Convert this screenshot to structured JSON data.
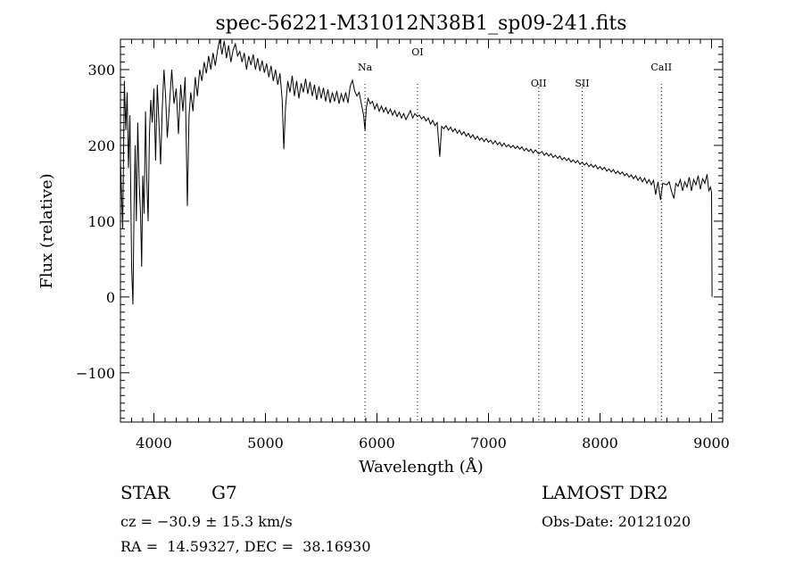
{
  "chart_data": {
    "type": "line",
    "title": "spec-56221-M31012N38B1_sp09-241.fits",
    "xlabel": "Wavelength (Å)",
    "ylabel": "Flux (relative)",
    "xlim": [
      3700,
      9100
    ],
    "ylim": [
      -165,
      340
    ],
    "x_ticks": [
      4000,
      5000,
      6000,
      7000,
      8000,
      9000
    ],
    "y_ticks": [
      -100,
      0,
      100,
      200,
      300
    ],
    "x_tick_labels": [
      "4000",
      "5000",
      "6000",
      "7000",
      "8000",
      "9000"
    ],
    "y_tick_labels": [
      "−100",
      "0",
      "100",
      "200",
      "300"
    ],
    "lines": [
      {
        "label": "Na",
        "wavelength": 5893
      },
      {
        "label": "OI",
        "wavelength": 6363
      },
      {
        "label": "OII",
        "wavelength": 7450
      },
      {
        "label": "SII",
        "wavelength": 7840
      },
      {
        "label": "CaII",
        "wavelength": 8550
      }
    ],
    "series": [
      {
        "name": "flux",
        "points": [
          [
            3700,
            180
          ],
          [
            3720,
            90
          ],
          [
            3735,
            285
          ],
          [
            3748,
            220
          ],
          [
            3760,
            270
          ],
          [
            3772,
            170
          ],
          [
            3785,
            240
          ],
          [
            3800,
            40
          ],
          [
            3812,
            -10
          ],
          [
            3822,
            120
          ],
          [
            3832,
            200
          ],
          [
            3842,
            100
          ],
          [
            3855,
            230
          ],
          [
            3868,
            150
          ],
          [
            3880,
            110
          ],
          [
            3890,
            40
          ],
          [
            3900,
            160
          ],
          [
            3912,
            110
          ],
          [
            3925,
            245
          ],
          [
            3935,
            160
          ],
          [
            3948,
            100
          ],
          [
            3960,
            215
          ],
          [
            3972,
            260
          ],
          [
            3985,
            230
          ],
          [
            4000,
            275
          ],
          [
            4015,
            180
          ],
          [
            4030,
            280
          ],
          [
            4045,
            230
          ],
          [
            4060,
            175
          ],
          [
            4075,
            250
          ],
          [
            4090,
            300
          ],
          [
            4105,
            265
          ],
          [
            4120,
            210
          ],
          [
            4140,
            255
          ],
          [
            4160,
            300
          ],
          [
            4180,
            255
          ],
          [
            4200,
            275
          ],
          [
            4220,
            215
          ],
          [
            4240,
            280
          ],
          [
            4260,
            245
          ],
          [
            4280,
            290
          ],
          [
            4300,
            120
          ],
          [
            4315,
            240
          ],
          [
            4330,
            270
          ],
          [
            4350,
            245
          ],
          [
            4370,
            290
          ],
          [
            4390,
            265
          ],
          [
            4410,
            300
          ],
          [
            4430,
            285
          ],
          [
            4450,
            310
          ],
          [
            4470,
            295
          ],
          [
            4490,
            318
          ],
          [
            4510,
            300
          ],
          [
            4530,
            322
          ],
          [
            4550,
            305
          ],
          [
            4570,
            325
          ],
          [
            4590,
            340
          ],
          [
            4610,
            320
          ],
          [
            4630,
            338
          ],
          [
            4650,
            315
          ],
          [
            4670,
            332
          ],
          [
            4690,
            310
          ],
          [
            4710,
            326
          ],
          [
            4730,
            334
          ],
          [
            4750,
            318
          ],
          [
            4770,
            324
          ],
          [
            4790,
            310
          ],
          [
            4810,
            322
          ],
          [
            4830,
            300
          ],
          [
            4850,
            318
          ],
          [
            4870,
            306
          ],
          [
            4890,
            320
          ],
          [
            4910,
            300
          ],
          [
            4930,
            315
          ],
          [
            4950,
            298
          ],
          [
            4970,
            312
          ],
          [
            4990,
            296
          ],
          [
            5010,
            308
          ],
          [
            5030,
            290
          ],
          [
            5050,
            305
          ],
          [
            5070,
            285
          ],
          [
            5090,
            300
          ],
          [
            5110,
            280
          ],
          [
            5130,
            295
          ],
          [
            5150,
            260
          ],
          [
            5165,
            195
          ],
          [
            5180,
            250
          ],
          [
            5200,
            285
          ],
          [
            5220,
            270
          ],
          [
            5240,
            292
          ],
          [
            5260,
            265
          ],
          [
            5280,
            285
          ],
          [
            5300,
            262
          ],
          [
            5320,
            282
          ],
          [
            5340,
            270
          ],
          [
            5360,
            288
          ],
          [
            5380,
            268
          ],
          [
            5400,
            284
          ],
          [
            5420,
            265
          ],
          [
            5440,
            280
          ],
          [
            5460,
            260
          ],
          [
            5480,
            278
          ],
          [
            5500,
            262
          ],
          [
            5520,
            276
          ],
          [
            5540,
            258
          ],
          [
            5560,
            274
          ],
          [
            5580,
            256
          ],
          [
            5600,
            270
          ],
          [
            5620,
            258
          ],
          [
            5640,
            272
          ],
          [
            5660,
            255
          ],
          [
            5680,
            268
          ],
          [
            5700,
            258
          ],
          [
            5720,
            270
          ],
          [
            5740,
            256
          ],
          [
            5760,
            278
          ],
          [
            5780,
            286
          ],
          [
            5800,
            272
          ],
          [
            5820,
            265
          ],
          [
            5840,
            270
          ],
          [
            5860,
            255
          ],
          [
            5880,
            240
          ],
          [
            5893,
            220
          ],
          [
            5905,
            250
          ],
          [
            5920,
            262
          ],
          [
            5940,
            255
          ],
          [
            5960,
            258
          ],
          [
            5980,
            248
          ],
          [
            6000,
            255
          ],
          [
            6020,
            245
          ],
          [
            6040,
            252
          ],
          [
            6060,
            244
          ],
          [
            6080,
            250
          ],
          [
            6100,
            242
          ],
          [
            6120,
            248
          ],
          [
            6140,
            240
          ],
          [
            6160,
            246
          ],
          [
            6180,
            238
          ],
          [
            6200,
            244
          ],
          [
            6220,
            236
          ],
          [
            6240,
            242
          ],
          [
            6260,
            234
          ],
          [
            6280,
            240
          ],
          [
            6300,
            246
          ],
          [
            6320,
            236
          ],
          [
            6340,
            242
          ],
          [
            6363,
            238
          ],
          [
            6380,
            240
          ],
          [
            6400,
            235
          ],
          [
            6420,
            238
          ],
          [
            6440,
            232
          ],
          [
            6460,
            236
          ],
          [
            6480,
            228
          ],
          [
            6500,
            233
          ],
          [
            6520,
            226
          ],
          [
            6540,
            230
          ],
          [
            6563,
            185
          ],
          [
            6580,
            225
          ],
          [
            6600,
            222
          ],
          [
            6620,
            226
          ],
          [
            6640,
            220
          ],
          [
            6660,
            224
          ],
          [
            6680,
            218
          ],
          [
            6700,
            222
          ],
          [
            6720,
            216
          ],
          [
            6740,
            220
          ],
          [
            6760,
            214
          ],
          [
            6780,
            218
          ],
          [
            6800,
            212
          ],
          [
            6820,
            216
          ],
          [
            6840,
            210
          ],
          [
            6860,
            214
          ],
          [
            6880,
            208
          ],
          [
            6900,
            212
          ],
          [
            6920,
            207
          ],
          [
            6940,
            210
          ],
          [
            6960,
            205
          ],
          [
            6980,
            209
          ],
          [
            7000,
            204
          ],
          [
            7020,
            207
          ],
          [
            7040,
            202
          ],
          [
            7060,
            206
          ],
          [
            7080,
            201
          ],
          [
            7100,
            204
          ],
          [
            7120,
            199
          ],
          [
            7140,
            203
          ],
          [
            7160,
            198
          ],
          [
            7180,
            201
          ],
          [
            7200,
            197
          ],
          [
            7220,
            200
          ],
          [
            7240,
            196
          ],
          [
            7260,
            199
          ],
          [
            7280,
            195
          ],
          [
            7300,
            198
          ],
          [
            7320,
            193
          ],
          [
            7340,
            196
          ],
          [
            7360,
            192
          ],
          [
            7380,
            195
          ],
          [
            7400,
            190
          ],
          [
            7420,
            194
          ],
          [
            7450,
            189
          ],
          [
            7480,
            192
          ],
          [
            7500,
            187
          ],
          [
            7520,
            190
          ],
          [
            7540,
            186
          ],
          [
            7560,
            189
          ],
          [
            7580,
            184
          ],
          [
            7600,
            187
          ],
          [
            7620,
            183
          ],
          [
            7640,
            186
          ],
          [
            7660,
            181
          ],
          [
            7680,
            184
          ],
          [
            7700,
            180
          ],
          [
            7720,
            183
          ],
          [
            7740,
            178
          ],
          [
            7760,
            181
          ],
          [
            7780,
            177
          ],
          [
            7800,
            180
          ],
          [
            7820,
            175
          ],
          [
            7840,
            178
          ],
          [
            7860,
            174
          ],
          [
            7880,
            177
          ],
          [
            7900,
            172
          ],
          [
            7920,
            175
          ],
          [
            7940,
            171
          ],
          [
            7960,
            174
          ],
          [
            7980,
            169
          ],
          [
            8000,
            172
          ],
          [
            8020,
            168
          ],
          [
            8040,
            171
          ],
          [
            8060,
            166
          ],
          [
            8080,
            169
          ],
          [
            8100,
            165
          ],
          [
            8120,
            168
          ],
          [
            8140,
            163
          ],
          [
            8160,
            166
          ],
          [
            8180,
            162
          ],
          [
            8200,
            165
          ],
          [
            8220,
            160
          ],
          [
            8240,
            163
          ],
          [
            8260,
            158
          ],
          [
            8280,
            161
          ],
          [
            8300,
            156
          ],
          [
            8320,
            160
          ],
          [
            8340,
            154
          ],
          [
            8360,
            158
          ],
          [
            8380,
            152
          ],
          [
            8400,
            157
          ],
          [
            8420,
            150
          ],
          [
            8440,
            155
          ],
          [
            8460,
            148
          ],
          [
            8480,
            154
          ],
          [
            8498,
            135
          ],
          [
            8520,
            152
          ],
          [
            8542,
            128
          ],
          [
            8562,
            150
          ],
          [
            8600,
            148
          ],
          [
            8620,
            152
          ],
          [
            8640,
            140
          ],
          [
            8662,
            130
          ],
          [
            8680,
            150
          ],
          [
            8700,
            146
          ],
          [
            8720,
            155
          ],
          [
            8740,
            140
          ],
          [
            8760,
            152
          ],
          [
            8780,
            145
          ],
          [
            8800,
            158
          ],
          [
            8820,
            140
          ],
          [
            8840,
            155
          ],
          [
            8860,
            148
          ],
          [
            8880,
            160
          ],
          [
            8900,
            142
          ],
          [
            8920,
            156
          ],
          [
            8940,
            150
          ],
          [
            8960,
            162
          ],
          [
            8975,
            140
          ],
          [
            8990,
            145
          ],
          [
            9000,
            138
          ],
          [
            9005,
            0
          ]
        ]
      }
    ]
  },
  "footer": {
    "object_type": "STAR",
    "subclass": "G7",
    "cz": "cz = −30.9 ± 15.3 km/s",
    "coords": "RA =  14.59327, DEC =  38.16930",
    "survey": "LAMOST DR2",
    "obs_date": "Obs-Date: 20121020"
  }
}
